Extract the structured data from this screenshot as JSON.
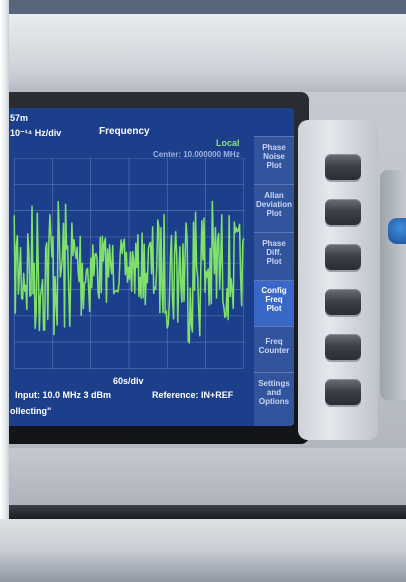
{
  "screen": {
    "top_left_value": "57m",
    "scale": "10⁻¹⁴ Hz/div",
    "title": "Frequency",
    "status": "Local",
    "center": "Center: 10.000000 MHz",
    "time_div": "60s/div",
    "input": "Input: 10.0 MHz 3 dBm",
    "reference": "Reference: IN+REF",
    "collecting": "ollecting\""
  },
  "menu": [
    {
      "line1": "Phase",
      "line2": "Noise",
      "line3": "Plot"
    },
    {
      "line1": "Allan",
      "line2": "Deviation",
      "line3": "Plot"
    },
    {
      "line1": "Phase",
      "line2": "Diff.",
      "line3": "Plot"
    },
    {
      "line1": "Config",
      "line2": "Freq",
      "line3": "Plot"
    },
    {
      "line1": "Freq",
      "line2": "Counter",
      "line3": ""
    },
    {
      "line1": "Settings",
      "line2": "and",
      "line3": "Options"
    }
  ],
  "colors": {
    "screen_bg": "#1b3f8a",
    "trace": "#7fe06a",
    "grid": "#c8d2ea"
  }
}
